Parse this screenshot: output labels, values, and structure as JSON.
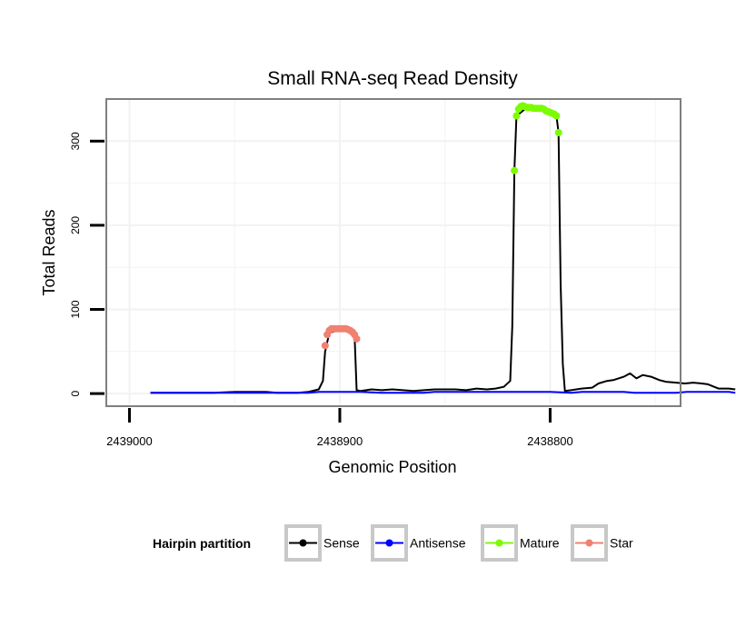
{
  "chart_data": {
    "type": "line",
    "title": "Small RNA-seq Read Density",
    "xlabel": "Genomic Position",
    "ylabel": "Total Reads",
    "x_reversed": true,
    "xlim": [
      2439011,
      2438738
    ],
    "ylim": [
      -15,
      350
    ],
    "x_ticks": [
      2439000,
      2438900,
      2438800
    ],
    "x_tick_labels": [
      "2439000",
      "2438900",
      "2438800"
    ],
    "y_ticks": [
      0,
      100,
      200,
      300
    ],
    "y_tick_labels": [
      "0",
      "100",
      "200",
      "300"
    ],
    "grid": true,
    "legend": {
      "title": "Hairpin partition",
      "position": "bottom",
      "entries": [
        "Sense",
        "Antisense",
        "Mature",
        "Star"
      ]
    },
    "colors": {
      "Sense": "#000000",
      "Antisense": "#0000ff",
      "Mature": "#7cfc00",
      "Star": "#f08070"
    },
    "series": [
      {
        "name": "Sense",
        "style": "line",
        "points": [
          [
            2438990,
            1
          ],
          [
            2438960,
            1
          ],
          [
            2438950,
            2
          ],
          [
            2438935,
            2
          ],
          [
            2438930,
            1
          ],
          [
            2438920,
            1
          ],
          [
            2438915,
            2
          ],
          [
            2438910,
            5
          ],
          [
            2438908,
            15
          ],
          [
            2438907,
            50
          ],
          [
            2438905,
            72
          ],
          [
            2438900,
            76
          ],
          [
            2438895,
            75
          ],
          [
            2438893,
            70
          ],
          [
            2438892,
            4
          ],
          [
            2438890,
            3
          ],
          [
            2438885,
            5
          ],
          [
            2438880,
            4
          ],
          [
            2438875,
            5
          ],
          [
            2438870,
            4
          ],
          [
            2438865,
            3
          ],
          [
            2438860,
            4
          ],
          [
            2438855,
            5
          ],
          [
            2438850,
            5
          ],
          [
            2438845,
            5
          ],
          [
            2438840,
            4
          ],
          [
            2438835,
            6
          ],
          [
            2438830,
            5
          ],
          [
            2438826,
            6
          ],
          [
            2438822,
            8
          ],
          [
            2438819,
            15
          ],
          [
            2438818,
            80
          ],
          [
            2438817,
            265
          ],
          [
            2438816,
            330
          ],
          [
            2438812,
            338
          ],
          [
            2438805,
            338
          ],
          [
            2438800,
            333
          ],
          [
            2438797,
            330
          ],
          [
            2438796,
            310
          ],
          [
            2438795,
            130
          ],
          [
            2438794,
            35
          ],
          [
            2438793,
            3
          ],
          [
            2438790,
            4
          ],
          [
            2438785,
            6
          ],
          [
            2438780,
            7
          ],
          [
            2438777,
            12
          ],
          [
            2438773,
            15
          ],
          [
            2438770,
            16
          ],
          [
            2438765,
            20
          ],
          [
            2438762,
            24
          ],
          [
            2438759,
            18
          ],
          [
            2438756,
            22
          ],
          [
            2438752,
            20
          ],
          [
            2438748,
            16
          ],
          [
            2438745,
            14
          ],
          [
            2438740,
            13
          ],
          [
            2438736,
            12
          ],
          [
            2438732,
            13
          ],
          [
            2438728,
            12
          ],
          [
            2438725,
            11
          ],
          [
            2438722,
            8
          ],
          [
            2438720,
            6
          ],
          [
            2438715,
            6
          ],
          [
            2438712,
            5
          ]
        ]
      },
      {
        "name": "Antisense",
        "style": "line",
        "points": [
          [
            2438990,
            1
          ],
          [
            2438915,
            1
          ],
          [
            2438910,
            2
          ],
          [
            2438890,
            2
          ],
          [
            2438880,
            1
          ],
          [
            2438860,
            1
          ],
          [
            2438855,
            2
          ],
          [
            2438800,
            2
          ],
          [
            2438790,
            1
          ],
          [
            2438785,
            2
          ],
          [
            2438765,
            2
          ],
          [
            2438760,
            1
          ],
          [
            2438740,
            1
          ],
          [
            2438735,
            2
          ],
          [
            2438715,
            2
          ],
          [
            2438712,
            1
          ]
        ]
      },
      {
        "name": "Mature",
        "style": "points",
        "points": [
          [
            2438817,
            265
          ],
          [
            2438816,
            330
          ],
          [
            2438815,
            338
          ],
          [
            2438814,
            341
          ],
          [
            2438813,
            342
          ],
          [
            2438812,
            341
          ],
          [
            2438811,
            340
          ],
          [
            2438810,
            340
          ],
          [
            2438809,
            340
          ],
          [
            2438808,
            339
          ],
          [
            2438807,
            339
          ],
          [
            2438806,
            339
          ],
          [
            2438805,
            339
          ],
          [
            2438804,
            339
          ],
          [
            2438803,
            338
          ],
          [
            2438802,
            336
          ],
          [
            2438801,
            335
          ],
          [
            2438800,
            334
          ],
          [
            2438799,
            333
          ],
          [
            2438798,
            332
          ],
          [
            2438797,
            330
          ],
          [
            2438796,
            310
          ]
        ]
      },
      {
        "name": "Star",
        "style": "points",
        "points": [
          [
            2438907,
            57
          ],
          [
            2438906,
            70
          ],
          [
            2438905,
            75
          ],
          [
            2438904,
            77
          ],
          [
            2438903,
            77
          ],
          [
            2438902,
            77
          ],
          [
            2438901,
            77
          ],
          [
            2438900,
            77
          ],
          [
            2438899,
            77
          ],
          [
            2438898,
            77
          ],
          [
            2438897,
            77
          ],
          [
            2438896,
            76
          ],
          [
            2438895,
            75
          ],
          [
            2438894,
            73
          ],
          [
            2438893,
            70
          ],
          [
            2438892,
            65
          ]
        ]
      }
    ]
  }
}
